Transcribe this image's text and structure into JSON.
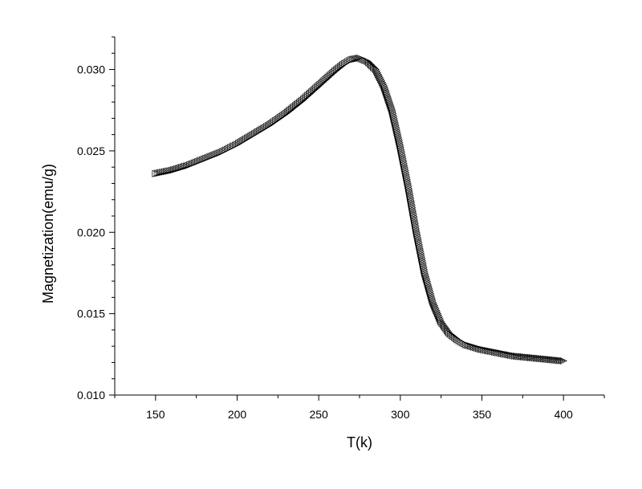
{
  "chart_data": {
    "type": "scatter",
    "xlabel": "T(k)",
    "ylabel": "Magnetization(emu/g)",
    "xlim": [
      125,
      425
    ],
    "ylim": [
      0.01,
      0.032
    ],
    "xticks": [
      150,
      200,
      250,
      300,
      350,
      400
    ],
    "xtick_labels": [
      "150",
      "200",
      "250",
      "300",
      "350",
      "400"
    ],
    "yticks": [
      0.01,
      0.015,
      0.02,
      0.025,
      0.03
    ],
    "ytick_labels": [
      "0.010",
      "0.015",
      "0.020",
      "0.025",
      "0.030"
    ],
    "grid": false,
    "marker": "triangle-right",
    "series": [
      {
        "x": [
          150,
          160,
          170,
          180,
          190,
          200,
          210,
          220,
          230,
          240,
          250,
          260,
          265,
          270,
          275,
          280,
          285,
          290,
          295,
          300,
          305,
          310,
          315,
          320,
          325,
          330,
          335,
          340,
          350,
          360,
          370,
          380,
          390,
          400
        ],
        "y": [
          0.0236,
          0.0238,
          0.0241,
          0.0245,
          0.0249,
          0.0254,
          0.026,
          0.0266,
          0.0273,
          0.0281,
          0.029,
          0.0299,
          0.0303,
          0.0306,
          0.0307,
          0.0305,
          0.03,
          0.029,
          0.0275,
          0.0253,
          0.0228,
          0.02,
          0.0175,
          0.0157,
          0.0145,
          0.0138,
          0.0134,
          0.0131,
          0.0128,
          0.0126,
          0.0124,
          0.0123,
          0.0122,
          0.0121
        ]
      }
    ]
  }
}
